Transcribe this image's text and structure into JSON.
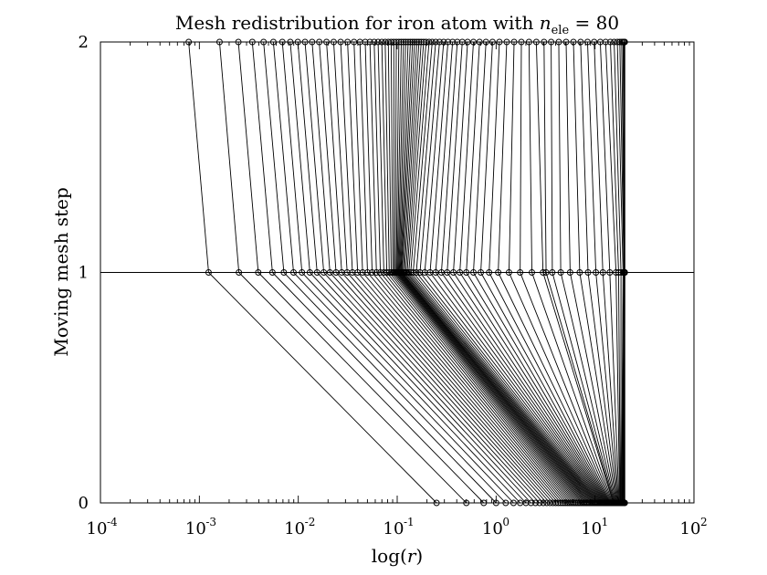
{
  "chart_data": {
    "type": "line",
    "title": {
      "prefix": "Mesh redistribution for iron atom with ",
      "var": "n",
      "subscript": "ele",
      "suffix": " = 80"
    },
    "xlabel": {
      "prefix": "log(",
      "var": "r",
      "suffix": ")"
    },
    "ylabel": "Moving mesh step",
    "xscale": "log",
    "xlim": [
      0.0001,
      100
    ],
    "ylim": [
      0,
      2
    ],
    "x_ticks": [
      {
        "base": "10",
        "exp": "-4",
        "value": 0.0001
      },
      {
        "base": "10",
        "exp": "-3",
        "value": 0.001
      },
      {
        "base": "10",
        "exp": "-2",
        "value": 0.01
      },
      {
        "base": "10",
        "exp": "-1",
        "value": 0.1
      },
      {
        "base": "10",
        "exp": "0",
        "value": 1
      },
      {
        "base": "10",
        "exp": "1",
        "value": 10
      },
      {
        "base": "10",
        "exp": "2",
        "value": 100
      }
    ],
    "y_ticks": [
      {
        "label": "0",
        "value": 0
      },
      {
        "label": "1",
        "value": 1
      },
      {
        "label": "2",
        "value": 2
      }
    ],
    "reference_lines": [
      {
        "orientation": "horizontal",
        "y": 1
      }
    ],
    "grid": false,
    "marker": "open-circle",
    "line_color": "#000000",
    "series": [
      {
        "y": 0,
        "x": [
          0.25,
          0.5,
          0.75,
          1,
          1.25,
          1.5,
          1.75,
          2,
          2.25,
          2.5,
          2.75,
          3,
          3.25,
          3.5,
          3.75,
          4,
          4.25,
          4.5,
          4.75,
          5,
          5.25,
          5.5,
          5.75,
          6,
          6.25,
          6.5,
          6.75,
          7,
          7.25,
          7.5,
          7.75,
          8,
          8.25,
          8.5,
          8.75,
          9,
          9.25,
          9.5,
          9.75,
          10,
          10.25,
          10.5,
          10.75,
          11,
          11.25,
          11.5,
          11.75,
          12,
          12.25,
          12.5,
          12.75,
          13,
          13.25,
          13.5,
          13.75,
          14,
          14.25,
          14.5,
          14.75,
          15,
          15.25,
          15.5,
          15.75,
          16,
          16.25,
          16.5,
          16.75,
          17,
          17.25,
          17.5,
          17.75,
          18,
          18.25,
          18.5,
          18.75,
          19,
          19.25,
          19.5,
          19.75,
          20
        ]
      },
      {
        "y": 1,
        "x": [
          0.00124,
          0.00251,
          0.00394,
          0.00548,
          0.00715,
          0.00896,
          0.0109,
          0.0131,
          0.0155,
          0.0181,
          0.0209,
          0.0241,
          0.0275,
          0.0312,
          0.0353,
          0.0398,
          0.0447,
          0.0501,
          0.0558,
          0.0617,
          0.0676,
          0.0733,
          0.0785,
          0.0831,
          0.087,
          0.0904,
          0.0932,
          0.0957,
          0.098,
          0.1,
          0.102,
          0.104,
          0.106,
          0.108,
          0.11,
          0.112,
          0.115,
          0.118,
          0.122,
          0.126,
          0.131,
          0.137,
          0.145,
          0.156,
          0.17,
          0.19,
          0.215,
          0.245,
          0.28,
          0.32,
          0.37,
          0.43,
          0.5,
          0.59,
          0.7,
          0.85,
          1.05,
          1.35,
          1.75,
          2.3,
          2.98,
          3.2,
          3.7,
          4.5,
          5.6,
          7,
          8.5,
          10.2,
          12,
          14.1,
          16.3,
          17.3,
          18.3,
          19.2,
          19.6,
          19.75,
          19.85,
          19.92,
          19.97,
          20
        ]
      },
      {
        "y": 2,
        "x": [
          0.00078,
          0.0016,
          0.00248,
          0.00343,
          0.00446,
          0.0056,
          0.0069,
          0.0083,
          0.0099,
          0.0117,
          0.0138,
          0.0163,
          0.0193,
          0.0228,
          0.0268,
          0.0315,
          0.0366,
          0.042,
          0.0475,
          0.053,
          0.0585,
          0.0641,
          0.0699,
          0.0756,
          0.0813,
          0.0869,
          0.0923,
          0.098,
          0.104,
          0.11,
          0.116,
          0.122,
          0.129,
          0.136,
          0.143,
          0.15,
          0.158,
          0.166,
          0.175,
          0.185,
          0.196,
          0.21,
          0.226,
          0.245,
          0.268,
          0.295,
          0.326,
          0.363,
          0.405,
          0.455,
          0.515,
          0.59,
          0.68,
          0.79,
          0.92,
          1.08,
          1.28,
          1.52,
          1.8,
          2.15,
          2.55,
          3.05,
          3.6,
          4.3,
          5.1,
          6.05,
          7.15,
          8.4,
          9.8,
          11.3,
          12.8,
          14.3,
          15.6,
          16.8,
          17.8,
          18.6,
          19.2,
          19.6,
          19.85,
          20
        ]
      }
    ]
  }
}
